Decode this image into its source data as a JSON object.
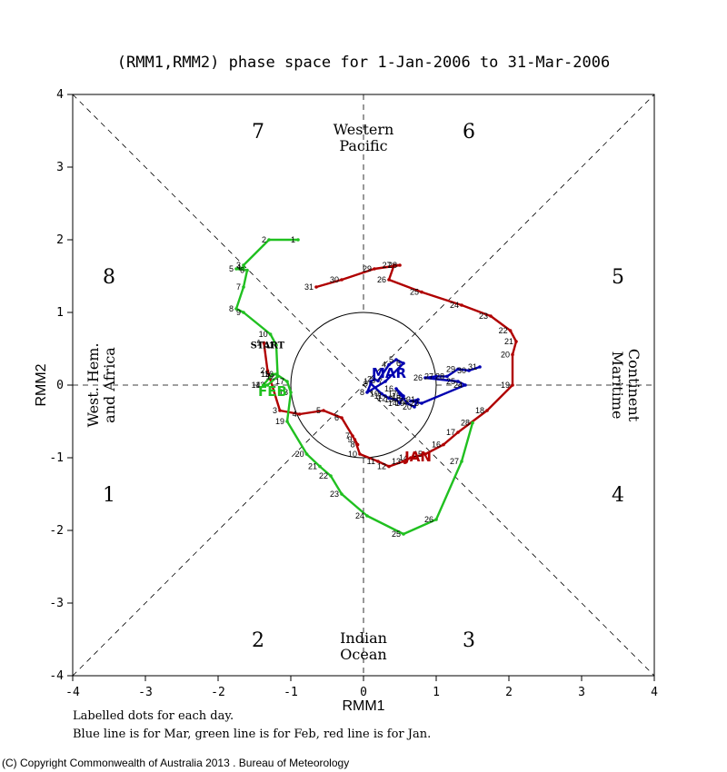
{
  "chart_data": {
    "type": "line",
    "title": "(RMM1,RMM2) phase space for  1-Jan-2006 to 31-Mar-2006",
    "xlabel": "RMM1",
    "ylabel": "RMM2",
    "xlim": [
      -4,
      4
    ],
    "ylim": [
      -4,
      4
    ],
    "ticks": [
      "-4",
      "-3",
      "-2",
      "-1",
      "0",
      "1",
      "2",
      "3",
      "4"
    ],
    "phases": [
      "1",
      "2",
      "3",
      "4",
      "5",
      "6",
      "7",
      "8"
    ],
    "regions": {
      "top": [
        "Western",
        "Pacific"
      ],
      "bottom": [
        "Indian",
        "Ocean"
      ],
      "left": [
        "West. Hem.",
        "and Africa"
      ],
      "right": [
        "Maritime",
        "Continent"
      ]
    },
    "start_label": "START",
    "series": [
      {
        "name": "JAN",
        "color": "#b00000",
        "days": [
          "1",
          "2",
          "3",
          "4",
          "5",
          "6",
          "7",
          "8",
          "9",
          "10",
          "11",
          "12",
          "13",
          "14",
          "15",
          "16",
          "17",
          "18",
          "19",
          "20",
          "21",
          "22",
          "23",
          "24",
          "25",
          "26",
          "27",
          "28",
          "29",
          "30",
          "31"
        ],
        "x": [
          -1.37,
          -1.32,
          -1.15,
          -0.88,
          -0.55,
          -0.3,
          -0.15,
          -0.08,
          -0.12,
          -0.05,
          0.2,
          0.35,
          0.55,
          0.65,
          0.85,
          1.1,
          1.3,
          1.7,
          2.05,
          2.05,
          2.1,
          2.02,
          1.75,
          1.35,
          0.8,
          0.35,
          0.42,
          0.5,
          0.15,
          -0.3,
          -0.65
        ],
        "y": [
          0.58,
          0.2,
          -0.35,
          -0.4,
          -0.35,
          -0.45,
          -0.7,
          -0.82,
          -0.75,
          -0.95,
          -1.05,
          -1.12,
          -1.05,
          -1.0,
          -0.95,
          -0.82,
          -0.65,
          -0.35,
          0.0,
          0.42,
          0.6,
          0.75,
          0.95,
          1.1,
          1.28,
          1.45,
          1.65,
          1.65,
          1.6,
          1.45,
          1.35
        ]
      },
      {
        "name": "FEB",
        "color": "#20c020",
        "days": [
          "1",
          "2",
          "3",
          "4",
          "5",
          "6",
          "7",
          "8",
          "9",
          "10",
          "11",
          "12",
          "13",
          "14",
          "15",
          "16",
          "17",
          "18",
          "19",
          "20",
          "21",
          "22",
          "23",
          "24",
          "25",
          "26",
          "27",
          "28"
        ],
        "x": [
          -0.9,
          -1.3,
          -1.65,
          -1.65,
          -1.75,
          -1.6,
          -1.65,
          -1.75,
          -1.65,
          -1.28,
          -1.2,
          -1.18,
          -1.32,
          -1.38,
          -1.25,
          -1.2,
          -1.05,
          -1.0,
          -1.05,
          -0.78,
          -0.6,
          -0.45,
          -0.3,
          0.05,
          0.55,
          1.0,
          1.35,
          1.5
        ],
        "y": [
          2.0,
          2.0,
          1.65,
          1.62,
          1.6,
          1.58,
          1.35,
          1.05,
          1.0,
          0.7,
          0.55,
          0.12,
          0.0,
          0.0,
          0.15,
          0.15,
          0.05,
          -0.1,
          -0.5,
          -0.95,
          -1.12,
          -1.25,
          -1.5,
          -1.8,
          -2.05,
          -1.85,
          -1.05,
          -0.52
        ]
      },
      {
        "name": "MAR",
        "color": "#0000b0",
        "days": [
          "1",
          "2",
          "3",
          "4",
          "5",
          "6",
          "7",
          "8",
          "9",
          "10",
          "11",
          "12",
          "13",
          "14",
          "15",
          "16",
          "17",
          "18",
          "19",
          "20",
          "21",
          "22",
          "23",
          "24",
          "25",
          "26",
          "27",
          "28",
          "29",
          "30",
          "31"
        ],
        "x": [
          0.1,
          0.15,
          0.2,
          0.35,
          0.45,
          0.55,
          0.3,
          0.05,
          0.1,
          0.25,
          0.3,
          0.35,
          0.45,
          0.5,
          0.55,
          0.45,
          0.5,
          0.55,
          0.6,
          0.7,
          0.75,
          0.65,
          0.8,
          1.4,
          1.3,
          0.85,
          1.0,
          1.15,
          1.3,
          1.45,
          1.6
        ],
        "y": [
          0.05,
          0.08,
          0.06,
          0.28,
          0.35,
          0.3,
          0.05,
          -0.1,
          0.02,
          -0.12,
          -0.15,
          -0.18,
          -0.2,
          -0.25,
          -0.15,
          -0.05,
          -0.12,
          -0.18,
          -0.25,
          -0.3,
          -0.2,
          -0.22,
          -0.25,
          0.0,
          0.05,
          0.1,
          0.12,
          0.12,
          0.22,
          0.2,
          0.25
        ]
      }
    ],
    "legend_labels": [
      {
        "text": "JAN",
        "series": "JAN"
      },
      {
        "text": "FEB",
        "series": "FEB"
      },
      {
        "text": "MAR",
        "series": "MAR"
      }
    ]
  },
  "footnotes": [
    "Labelled dots for each day.",
    "Blue line is for Mar, green line is for Feb, red line is for Jan."
  ],
  "copyright": "(C) Copyright Commonwealth of Australia 2013 . Bureau of Meteorology"
}
